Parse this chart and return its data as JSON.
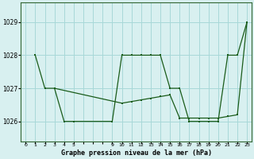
{
  "background_color": "#d8f0f0",
  "plot_bg_color": "#d8f0f0",
  "line_color": "#1a5c1a",
  "grid_color": "#a8d8d8",
  "title": "Graphe pression niveau de la mer (hPa)",
  "ylim": [
    1025.4,
    1029.6
  ],
  "yticks": [
    1026,
    1027,
    1028,
    1029
  ],
  "xlim": [
    -0.5,
    23.5
  ],
  "line1_x": [
    1,
    2,
    3,
    4,
    5,
    9,
    10,
    11,
    12,
    13,
    14,
    15,
    16,
    17,
    18,
    19,
    20,
    21,
    22,
    23
  ],
  "line1_y": [
    1028,
    1027,
    1027,
    1026,
    1026,
    1026,
    1028,
    1028,
    1028,
    1028,
    1028,
    1027,
    1027,
    1026,
    1026,
    1026,
    1026,
    1028,
    1028,
    1029
  ],
  "line2_x": [
    3,
    10,
    11,
    12,
    13,
    14,
    15,
    16,
    17,
    18,
    19,
    20,
    21,
    22,
    23
  ],
  "line2_y": [
    1027,
    1026.55,
    1026.6,
    1026.65,
    1026.7,
    1026.75,
    1026.8,
    1026.1,
    1026.1,
    1026.1,
    1026.1,
    1026.1,
    1026.15,
    1026.2,
    1029
  ],
  "xtick_positions": [
    0,
    1,
    2,
    3,
    4,
    5,
    9,
    10,
    11,
    12,
    13,
    14,
    15,
    16,
    17,
    18,
    19,
    20,
    21,
    22,
    23
  ],
  "xtick_labels": [
    "0",
    "1",
    "2",
    "3",
    "4",
    "5",
    "9",
    "10",
    "11",
    "12",
    "13",
    "14",
    "15",
    "16",
    "17",
    "18",
    "19",
    "20",
    "21",
    "22",
    "23"
  ]
}
